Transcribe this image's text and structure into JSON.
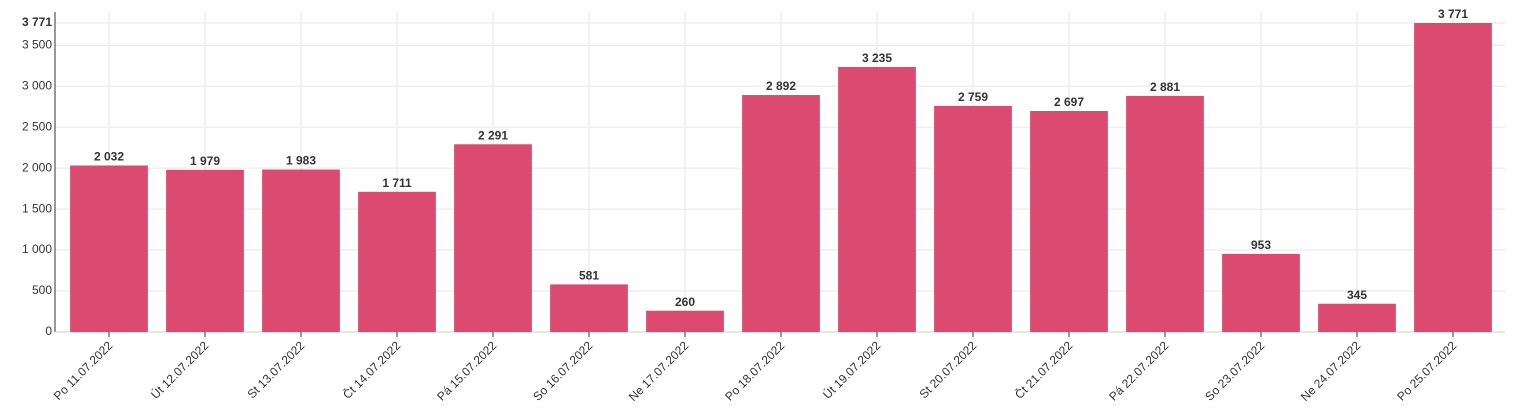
{
  "chart_data": {
    "type": "bar",
    "categories": [
      "Po 11.07.2022",
      "Út 12.07.2022",
      "St 13.07.2022",
      "Čt 14.07.2022",
      "Pá 15.07.2022",
      "So 16.07.2022",
      "Ne 17.07.2022",
      "Po 18.07.2022",
      "Út 19.07.2022",
      "St 20.07.2022",
      "Čt 21.07.2022",
      "Pá 22.07.2022",
      "So 23.07.2022",
      "Ne 24.07.2022",
      "Po 25.07.2022"
    ],
    "values": [
      2032,
      1979,
      1983,
      1711,
      2291,
      581,
      260,
      2892,
      3235,
      2759,
      2697,
      2881,
      953,
      345,
      3771
    ],
    "value_labels": [
      "2 032",
      "1 979",
      "1 983",
      "1 711",
      "2 291",
      "581",
      "260",
      "2 892",
      "3 235",
      "2 759",
      "2 697",
      "2 881",
      "953",
      "345",
      "3 771"
    ],
    "color": "#dc4a72",
    "ylim": [
      0,
      3771
    ],
    "yticks": [
      0,
      500,
      {
        "value": 1000,
        "label": "1 000"
      },
      {
        "value": 1500,
        "label": "1 500"
      },
      {
        "value": 2000,
        "label": "2 000"
      },
      {
        "value": 2500,
        "label": "2 500"
      },
      {
        "value": 3000,
        "label": "3 000"
      },
      {
        "value": 3500,
        "label": "3 500"
      },
      {
        "value": 3771,
        "label": "3 771"
      }
    ],
    "grid": true
  }
}
